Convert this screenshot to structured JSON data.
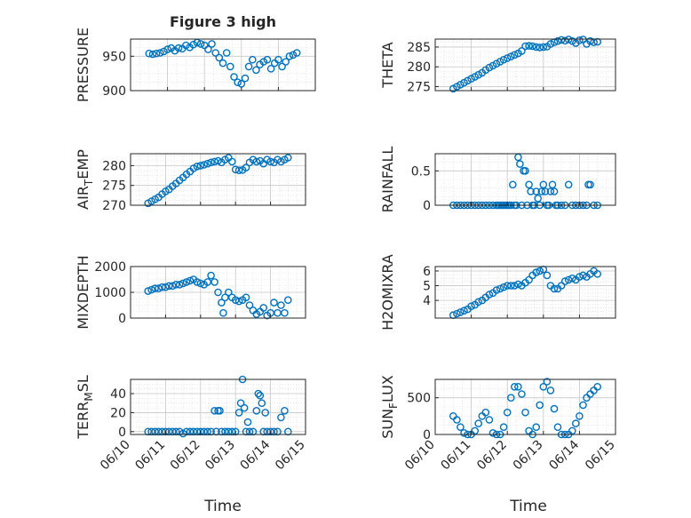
{
  "figure": {
    "title": "Figure 3 high",
    "xlabel": "Time",
    "marker_color": "#0072BD"
  },
  "chart_data": [
    {
      "type": "scatter",
      "ylabel": "PRESSURE",
      "xlim": [
        "06/10",
        "06/15"
      ],
      "ylim": [
        900,
        975
      ],
      "yticks": [
        900,
        950
      ],
      "xticks": [
        "06/10",
        "06/11",
        "06/12",
        "06/13",
        "06/14",
        "06/15"
      ],
      "series": [
        {
          "x": [
            10.5,
            10.6,
            10.7,
            10.8,
            10.9,
            11.0,
            11.1,
            11.2,
            11.3,
            11.4,
            11.5,
            11.6,
            11.7,
            11.8,
            11.9,
            12.0,
            12.1,
            12.2,
            12.3,
            12.4,
            12.5,
            12.6,
            12.7,
            12.8,
            12.9,
            13.0,
            13.1,
            13.2,
            13.3,
            13.4,
            13.5,
            13.6,
            13.7,
            13.8,
            13.9,
            14.0,
            14.1,
            14.2,
            14.3,
            14.4,
            14.5
          ],
          "y": [
            954,
            953,
            954,
            955,
            957,
            960,
            962,
            958,
            962,
            961,
            966,
            963,
            967,
            970,
            968,
            966,
            960,
            968,
            955,
            948,
            940,
            955,
            935,
            920,
            912,
            910,
            918,
            935,
            945,
            930,
            938,
            942,
            945,
            932,
            940,
            945,
            935,
            942,
            950,
            952,
            955
          ]
        }
      ]
    },
    {
      "type": "scatter",
      "ylabel": "THETA",
      "xlim": [
        "06/10",
        "06/15"
      ],
      "ylim": [
        274,
        287
      ],
      "yticks": [
        275,
        280,
        285
      ],
      "xticks": [
        "06/10",
        "06/11",
        "06/12",
        "06/13",
        "06/14",
        "06/15"
      ],
      "series": [
        {
          "x": [
            10.5,
            10.6,
            10.7,
            10.8,
            10.9,
            11.0,
            11.1,
            11.2,
            11.3,
            11.4,
            11.5,
            11.6,
            11.7,
            11.8,
            11.9,
            12.0,
            12.1,
            12.2,
            12.3,
            12.4,
            12.5,
            12.6,
            12.7,
            12.8,
            12.9,
            13.0,
            13.1,
            13.2,
            13.3,
            13.4,
            13.5,
            13.6,
            13.7,
            13.8,
            13.9,
            14.0,
            14.1,
            14.2,
            14.3,
            14.4,
            14.5
          ],
          "y": [
            274.5,
            275,
            275.5,
            276,
            276.5,
            277,
            277.5,
            278,
            278.5,
            279.2,
            279.8,
            280.3,
            280.8,
            281.3,
            281.8,
            282.2,
            282.6,
            283,
            283.4,
            284,
            285.2,
            285.3,
            285.2,
            285,
            284.9,
            285,
            285.1,
            285.8,
            286.2,
            286.5,
            286.8,
            286.6,
            286.9,
            286.5,
            286,
            286.7,
            286.9,
            285.8,
            286.5,
            286.2,
            286.3
          ]
        }
      ]
    },
    {
      "type": "scatter",
      "ylabel": "AIR_TEMP",
      "xlim": [
        "06/10",
        "06/15"
      ],
      "ylim": [
        270,
        283
      ],
      "yticks": [
        270,
        275,
        280
      ],
      "xticks": [
        "06/10",
        "06/11",
        "06/12",
        "06/13",
        "06/14",
        "06/15"
      ],
      "series": [
        {
          "x": [
            10.5,
            10.6,
            10.7,
            10.8,
            10.9,
            11.0,
            11.1,
            11.2,
            11.3,
            11.4,
            11.5,
            11.6,
            11.7,
            11.8,
            11.9,
            12.0,
            12.1,
            12.2,
            12.3,
            12.4,
            12.5,
            12.6,
            12.7,
            12.8,
            12.9,
            13.0,
            13.1,
            13.2,
            13.3,
            13.4,
            13.5,
            13.6,
            13.7,
            13.8,
            13.9,
            14.0,
            14.1,
            14.2,
            14.3,
            14.4,
            14.5
          ],
          "y": [
            270.5,
            271,
            271.5,
            272,
            272.8,
            273.5,
            274,
            274.8,
            275.5,
            276.3,
            277,
            277.8,
            278.5,
            279.3,
            279.8,
            280,
            280.2,
            280.5,
            280.8,
            281,
            281.2,
            280.8,
            281.5,
            282,
            281,
            279,
            278.8,
            278.9,
            279.5,
            280.8,
            281.5,
            281,
            281.2,
            280.5,
            281.5,
            281,
            280.8,
            281.5,
            281,
            281.5,
            282
          ]
        }
      ]
    },
    {
      "type": "scatter",
      "ylabel": "RAINFALL",
      "xlim": [
        "06/10",
        "06/15"
      ],
      "ylim": [
        0,
        0.75
      ],
      "yticks": [
        0,
        0.5
      ],
      "xticks": [
        "06/10",
        "06/11",
        "06/12",
        "06/13",
        "06/14",
        "06/15"
      ],
      "series": [
        {
          "x": [
            10.5,
            10.6,
            10.7,
            10.8,
            10.9,
            11.0,
            11.1,
            11.2,
            11.3,
            11.4,
            11.5,
            11.6,
            11.7,
            11.75,
            11.8,
            11.85,
            11.9,
            11.95,
            12.0,
            12.05,
            12.1,
            12.15,
            12.2,
            12.25,
            12.3,
            12.35,
            12.4,
            12.45,
            12.5,
            12.55,
            12.6,
            12.65,
            12.7,
            12.75,
            12.8,
            12.85,
            12.9,
            12.95,
            13.0,
            13.05,
            13.1,
            13.15,
            13.2,
            13.25,
            13.3,
            13.35,
            13.4,
            13.5,
            13.6,
            13.7,
            13.8,
            13.9,
            14.0,
            14.1,
            14.2,
            14.25,
            14.3,
            14.4,
            14.5
          ],
          "y": [
            0,
            0,
            0,
            0,
            0,
            0,
            0,
            0,
            0,
            0,
            0,
            0,
            0,
            0,
            0,
            0,
            0,
            0,
            0,
            0,
            0,
            0.3,
            0,
            0,
            0.7,
            0.6,
            0,
            0.5,
            0.5,
            0,
            0.3,
            0.2,
            0,
            0,
            0.2,
            0.1,
            0,
            0.2,
            0.3,
            0.2,
            0,
            0,
            0.2,
            0.3,
            0.2,
            0,
            0,
            0,
            0,
            0.3,
            0,
            0,
            0,
            0,
            0,
            0.3,
            0.3,
            0,
            0
          ]
        }
      ]
    },
    {
      "type": "scatter",
      "ylabel": "MIXDEPTH",
      "xlim": [
        "06/10",
        "06/15"
      ],
      "ylim": [
        0,
        2000
      ],
      "yticks": [
        0,
        1000,
        2000
      ],
      "xticks": [
        "06/10",
        "06/11",
        "06/12",
        "06/13",
        "06/14",
        "06/15"
      ],
      "series": [
        {
          "x": [
            10.5,
            10.6,
            10.7,
            10.8,
            10.9,
            11.0,
            11.1,
            11.2,
            11.3,
            11.4,
            11.5,
            11.6,
            11.7,
            11.8,
            11.9,
            12.0,
            12.1,
            12.2,
            12.3,
            12.4,
            12.5,
            12.6,
            12.65,
            12.7,
            12.8,
            12.9,
            13.0,
            13.1,
            13.2,
            13.3,
            13.4,
            13.5,
            13.6,
            13.7,
            13.8,
            13.9,
            14.0,
            14.1,
            14.2,
            14.3,
            14.4,
            14.5
          ],
          "y": [
            1050,
            1100,
            1150,
            1150,
            1200,
            1200,
            1250,
            1250,
            1300,
            1300,
            1350,
            1400,
            1450,
            1500,
            1400,
            1350,
            1300,
            1400,
            1650,
            1400,
            1000,
            600,
            200,
            800,
            1000,
            800,
            700,
            650,
            700,
            800,
            500,
            300,
            150,
            250,
            400,
            100,
            200,
            600,
            200,
            500,
            200,
            700
          ]
        }
      ]
    },
    {
      "type": "scatter",
      "ylabel": "H2OMIXRA",
      "xlim": [
        "06/10",
        "06/15"
      ],
      "ylim": [
        2.8,
        6.3
      ],
      "yticks": [
        4,
        5,
        6
      ],
      "xticks": [
        "06/10",
        "06/11",
        "06/12",
        "06/13",
        "06/14",
        "06/15"
      ],
      "series": [
        {
          "x": [
            10.5,
            10.6,
            10.7,
            10.8,
            10.9,
            11.0,
            11.1,
            11.2,
            11.3,
            11.4,
            11.5,
            11.6,
            11.7,
            11.8,
            11.9,
            12.0,
            12.1,
            12.2,
            12.3,
            12.4,
            12.5,
            12.6,
            12.7,
            12.8,
            12.9,
            13.0,
            13.1,
            13.2,
            13.3,
            13.4,
            13.5,
            13.6,
            13.7,
            13.8,
            13.9,
            14.0,
            14.1,
            14.2,
            14.3,
            14.4,
            14.5
          ],
          "y": [
            3,
            3.1,
            3.2,
            3.3,
            3.4,
            3.6,
            3.7,
            3.9,
            4.0,
            4.2,
            4.4,
            4.5,
            4.7,
            4.8,
            4.9,
            5.0,
            5.0,
            5.0,
            5.1,
            5.0,
            5.2,
            5.4,
            5.7,
            5.9,
            6.0,
            6.1,
            5.7,
            5.0,
            4.8,
            4.8,
            5.0,
            5.3,
            5.4,
            5.5,
            5.4,
            5.6,
            5.7,
            5.6,
            5.8,
            6.0,
            5.8
          ]
        }
      ]
    },
    {
      "type": "scatter",
      "ylabel": "TERR_MSL",
      "xlim": [
        "06/10",
        "06/15"
      ],
      "ylim": [
        -3,
        55
      ],
      "yticks": [
        0,
        20,
        40
      ],
      "xticks": [
        "06/10",
        "06/11",
        "06/12",
        "06/13",
        "06/14",
        "06/15"
      ],
      "series": [
        {
          "x": [
            10.5,
            10.6,
            10.7,
            10.8,
            10.9,
            11.0,
            11.1,
            11.2,
            11.3,
            11.4,
            11.5,
            11.6,
            11.7,
            11.8,
            11.9,
            12.0,
            12.1,
            12.2,
            12.3,
            12.4,
            12.45,
            12.5,
            12.55,
            12.6,
            12.7,
            12.8,
            12.9,
            13.0,
            13.1,
            13.15,
            13.2,
            13.25,
            13.3,
            13.35,
            13.4,
            13.5,
            13.6,
            13.65,
            13.7,
            13.75,
            13.8,
            13.85,
            13.9,
            14.0,
            14.1,
            14.2,
            14.3,
            14.4,
            14.5
          ],
          "y": [
            0,
            0,
            0,
            0,
            0,
            0,
            0,
            0,
            0,
            0,
            -2,
            0,
            0,
            0,
            0,
            0,
            0,
            0,
            0,
            22,
            0,
            22,
            22,
            0,
            0,
            0,
            0,
            0,
            20,
            30,
            55,
            25,
            0,
            10,
            0,
            0,
            22,
            40,
            38,
            30,
            0,
            20,
            0,
            0,
            0,
            0,
            15,
            22,
            0
          ]
        }
      ]
    },
    {
      "type": "scatter",
      "ylabel": "SUN_FLUX",
      "xlim": [
        "06/10",
        "06/15"
      ],
      "ylim": [
        0,
        750
      ],
      "yticks": [
        0,
        500
      ],
      "xticks": [
        "06/10",
        "06/11",
        "06/12",
        "06/13",
        "06/14",
        "06/15"
      ],
      "series": [
        {
          "x": [
            10.5,
            10.6,
            10.7,
            10.8,
            10.9,
            11.0,
            11.1,
            11.2,
            11.3,
            11.4,
            11.5,
            11.6,
            11.7,
            11.8,
            11.9,
            12.0,
            12.1,
            12.2,
            12.3,
            12.4,
            12.5,
            12.6,
            12.7,
            12.8,
            12.9,
            13.0,
            13.1,
            13.2,
            13.3,
            13.4,
            13.5,
            13.6,
            13.7,
            13.8,
            13.9,
            14.0,
            14.1,
            14.2,
            14.3,
            14.4,
            14.5
          ],
          "y": [
            250,
            200,
            100,
            20,
            0,
            0,
            50,
            150,
            250,
            300,
            200,
            20,
            0,
            0,
            100,
            300,
            500,
            650,
            650,
            550,
            300,
            50,
            0,
            100,
            400,
            650,
            720,
            600,
            350,
            100,
            0,
            0,
            0,
            50,
            150,
            250,
            400,
            500,
            550,
            600,
            650
          ]
        }
      ]
    }
  ]
}
